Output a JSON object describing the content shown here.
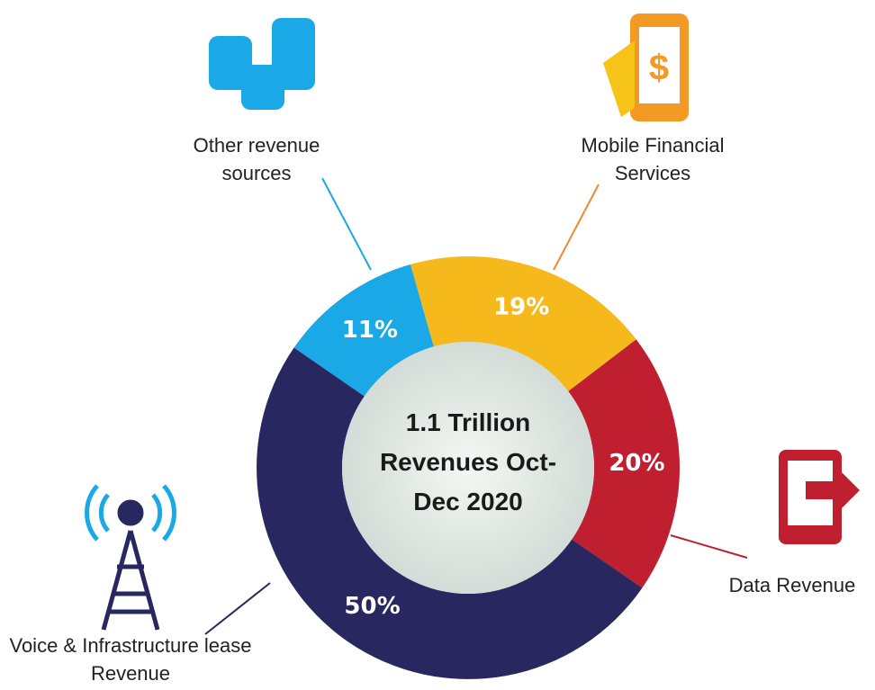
{
  "chart_data": {
    "type": "donut",
    "title": "1.1 Trillion Revenues Oct-Dec 2020",
    "categories": [
      "Other revenue sources",
      "Mobile Financial Services",
      "Data Revenue",
      "Voice & Infrastructure lease Revenue"
    ],
    "values": [
      11,
      19,
      20,
      50
    ],
    "value_labels": [
      "11%",
      "19%",
      "20%",
      "50%"
    ],
    "colors": [
      "#1ba8e6",
      "#f6b91c",
      "#c01f30",
      "#28275f"
    ]
  }
}
